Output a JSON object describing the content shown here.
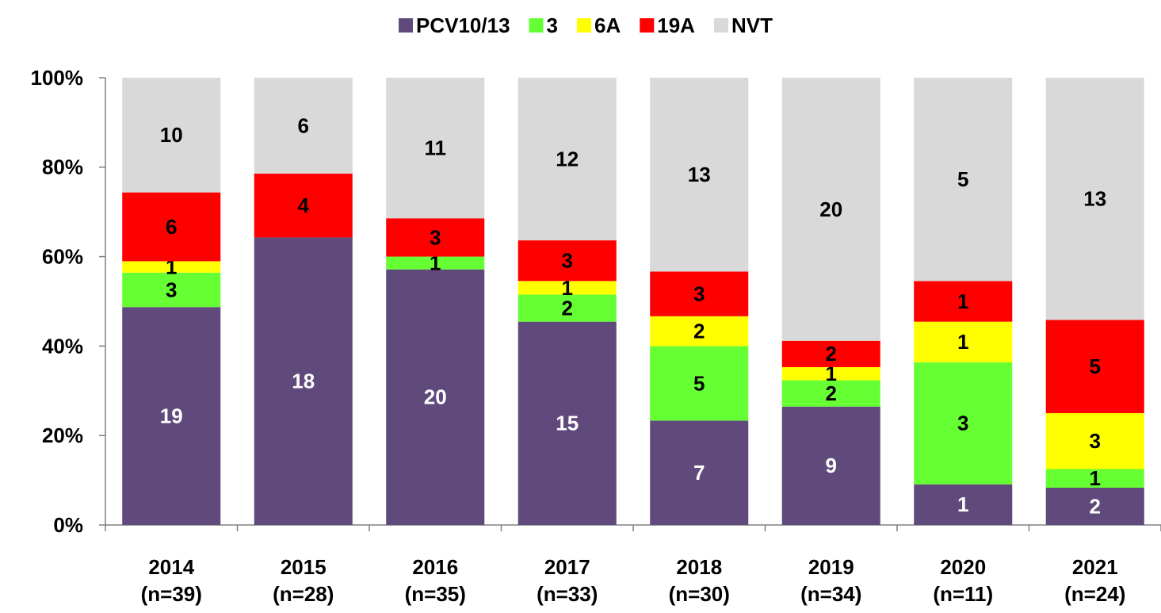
{
  "chart_data": {
    "type": "bar",
    "stacking": "percent",
    "categories": [
      "2014\n(n=39)",
      "2015\n(n=28)",
      "2016\n(n=35)",
      "2017\n(n=33)",
      "2018\n(n=30)",
      "2019\n(n=34)",
      "2020\n(n=11)",
      "2021\n(n=24)"
    ],
    "series": [
      {
        "name": "PCV10/13",
        "color": "#604a7b",
        "label_color": "#ffffff",
        "values": [
          19,
          18,
          20,
          15,
          7,
          9,
          1,
          2
        ]
      },
      {
        "name": "3",
        "color": "#66ff33",
        "label_color": "#000000",
        "values": [
          3,
          0,
          1,
          2,
          5,
          2,
          3,
          1
        ]
      },
      {
        "name": "6A",
        "color": "#ffff00",
        "label_color": "#000000",
        "values": [
          1,
          0,
          0,
          1,
          2,
          1,
          1,
          3
        ]
      },
      {
        "name": "19A",
        "color": "#ff0000",
        "label_color": "#000000",
        "values": [
          6,
          4,
          3,
          3,
          3,
          2,
          1,
          5
        ]
      },
      {
        "name": "NVT",
        "color": "#d9d9d9",
        "label_color": "#000000",
        "values": [
          10,
          6,
          11,
          12,
          13,
          20,
          5,
          13
        ]
      }
    ],
    "ylim": [
      0,
      100
    ],
    "yticks": [
      {
        "value": 0,
        "label": "0%"
      },
      {
        "value": 20,
        "label": "20%"
      },
      {
        "value": 40,
        "label": "40%"
      },
      {
        "value": 60,
        "label": "60%"
      },
      {
        "value": 80,
        "label": "80%"
      },
      {
        "value": 100,
        "label": "100%"
      }
    ],
    "grid": false,
    "legend": "top"
  }
}
